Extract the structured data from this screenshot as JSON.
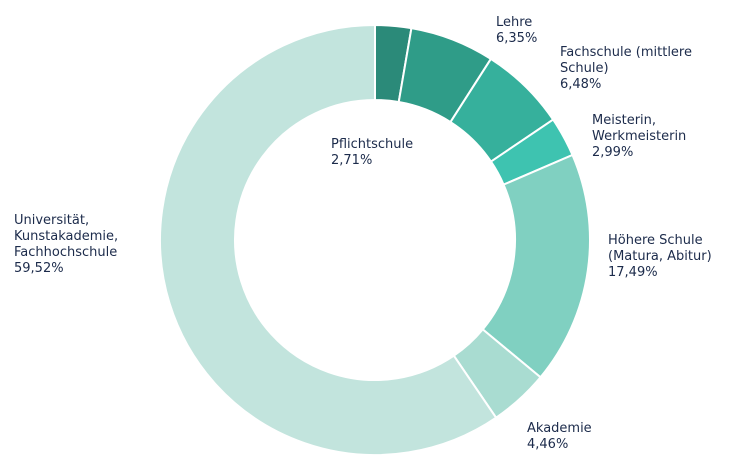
{
  "chart_data": {
    "type": "donut",
    "categories": [
      "Pflichtschule",
      "Lehre",
      "Fachschule (mittlere\nSchule)",
      "Meisterin,\nWerkmeisterin",
      "Höhere Schule\n(Matura, Abitur)",
      "Akademie",
      "Universität,\nKunstakademie,\nFachhochschule"
    ],
    "values": [
      2.71,
      6.35,
      6.48,
      2.99,
      17.49,
      4.46,
      59.52
    ],
    "value_labels": [
      "2,71%",
      "6,35%",
      "6,48%",
      "2,99%",
      "17,49%",
      "4,46%",
      "59,52%"
    ],
    "colors": [
      "#2b8a79",
      "#2f9c88",
      "#36b09c",
      "#3ec3b0",
      "#80d0c1",
      "#a9dcd1",
      "#c2e4dd"
    ]
  }
}
